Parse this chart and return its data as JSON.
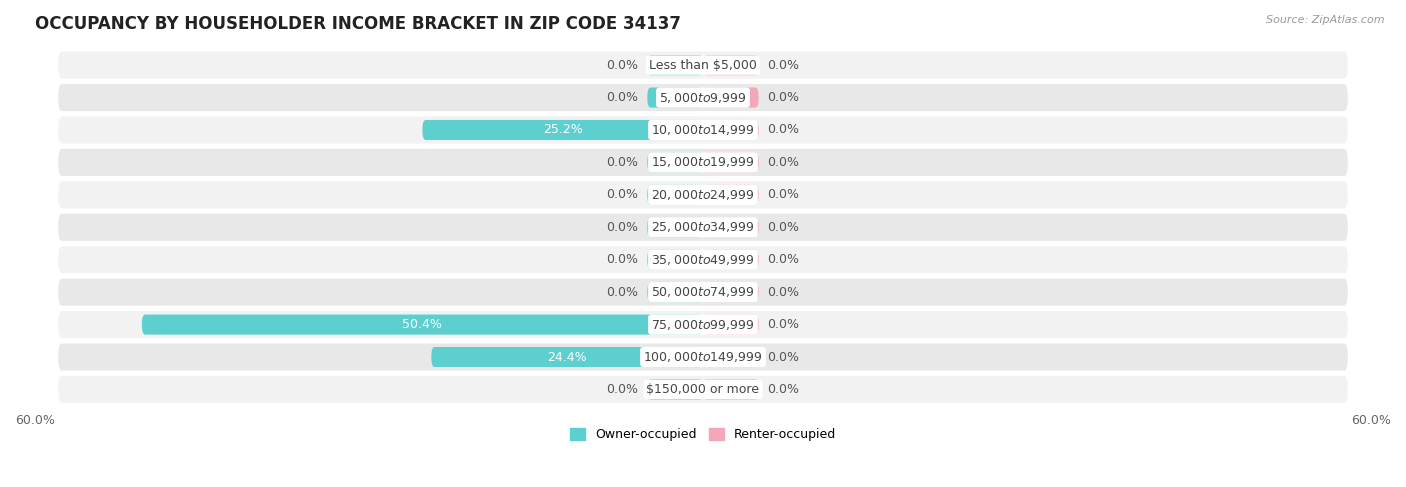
{
  "title": "OCCUPANCY BY HOUSEHOLDER INCOME BRACKET IN ZIP CODE 34137",
  "source": "Source: ZipAtlas.com",
  "categories": [
    "Less than $5,000",
    "$5,000 to $9,999",
    "$10,000 to $14,999",
    "$15,000 to $19,999",
    "$20,000 to $24,999",
    "$25,000 to $34,999",
    "$35,000 to $49,999",
    "$50,000 to $74,999",
    "$75,000 to $99,999",
    "$100,000 to $149,999",
    "$150,000 or more"
  ],
  "owner_values": [
    0.0,
    0.0,
    25.2,
    0.0,
    0.0,
    0.0,
    0.0,
    0.0,
    50.4,
    24.4,
    0.0
  ],
  "renter_values": [
    0.0,
    0.0,
    0.0,
    0.0,
    0.0,
    0.0,
    0.0,
    0.0,
    0.0,
    0.0,
    0.0
  ],
  "owner_color": "#5ECFCF",
  "renter_color": "#F4A7B9",
  "row_bg_light": "#F2F2F2",
  "row_bg_dark": "#E8E8E8",
  "xlim": [
    -60,
    60
  ],
  "title_fontsize": 12,
  "label_fontsize": 9,
  "value_fontsize": 9,
  "axis_fontsize": 9,
  "source_fontsize": 8,
  "bar_height": 0.62,
  "min_stub": 5.0
}
